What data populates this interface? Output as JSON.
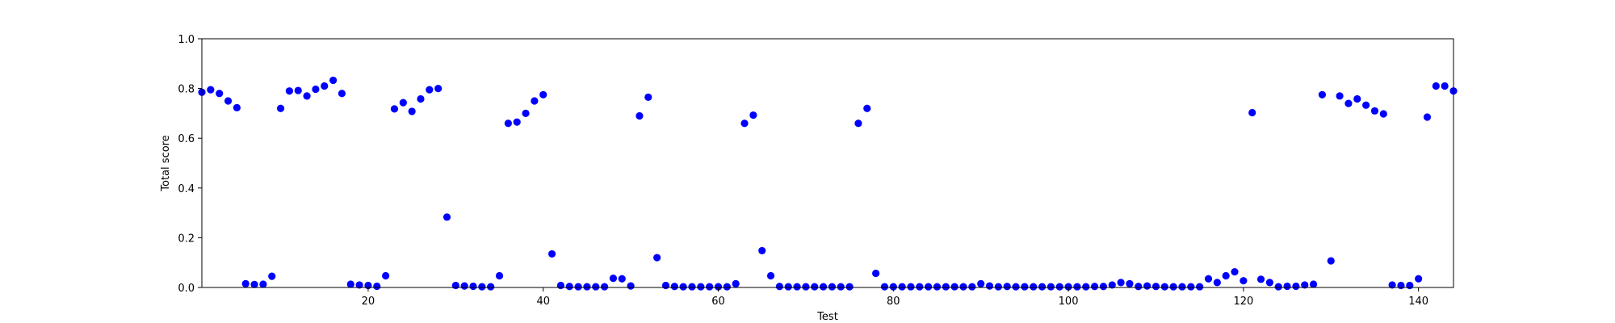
{
  "chart_data": {
    "type": "scatter",
    "title": "",
    "xlabel": "Test",
    "ylabel": "Total score",
    "xlim": [
      1,
      144
    ],
    "ylim": [
      0,
      1.0
    ],
    "xticks": [
      20,
      40,
      60,
      80,
      100,
      120,
      140
    ],
    "yticks": [
      0.0,
      0.2,
      0.4,
      0.6,
      0.8,
      1.0
    ],
    "ytick_labels": [
      "0.0",
      "0.2",
      "0.4",
      "0.6",
      "0.8",
      "1.0"
    ],
    "grid": false,
    "marker_color": "#0000ff",
    "points": [
      [
        1,
        0.785
      ],
      [
        2,
        0.795
      ],
      [
        3,
        0.78
      ],
      [
        4,
        0.75
      ],
      [
        5,
        0.723
      ],
      [
        6,
        0.015
      ],
      [
        7,
        0.012
      ],
      [
        8,
        0.013
      ],
      [
        9,
        0.045
      ],
      [
        10,
        0.72
      ],
      [
        11,
        0.79
      ],
      [
        12,
        0.792
      ],
      [
        13,
        0.77
      ],
      [
        14,
        0.797
      ],
      [
        15,
        0.81
      ],
      [
        16,
        0.833
      ],
      [
        17,
        0.78
      ],
      [
        18,
        0.013
      ],
      [
        19,
        0.01
      ],
      [
        20,
        0.008
      ],
      [
        21,
        0.005
      ],
      [
        22,
        0.047
      ],
      [
        23,
        0.718
      ],
      [
        24,
        0.743
      ],
      [
        25,
        0.708
      ],
      [
        26,
        0.758
      ],
      [
        27,
        0.795
      ],
      [
        28,
        0.8
      ],
      [
        29,
        0.283
      ],
      [
        30,
        0.008
      ],
      [
        31,
        0.006
      ],
      [
        32,
        0.005
      ],
      [
        33,
        0.003
      ],
      [
        34,
        0.003
      ],
      [
        35,
        0.047
      ],
      [
        36,
        0.66
      ],
      [
        37,
        0.665
      ],
      [
        38,
        0.7
      ],
      [
        39,
        0.75
      ],
      [
        40,
        0.775
      ],
      [
        41,
        0.135
      ],
      [
        42,
        0.008
      ],
      [
        43,
        0.004
      ],
      [
        44,
        0.003
      ],
      [
        45,
        0.003
      ],
      [
        46,
        0.003
      ],
      [
        47,
        0.003
      ],
      [
        48,
        0.037
      ],
      [
        49,
        0.035
      ],
      [
        50,
        0.006
      ],
      [
        51,
        0.69
      ],
      [
        52,
        0.765
      ],
      [
        53,
        0.12
      ],
      [
        54,
        0.008
      ],
      [
        55,
        0.004
      ],
      [
        56,
        0.003
      ],
      [
        57,
        0.003
      ],
      [
        58,
        0.003
      ],
      [
        59,
        0.003
      ],
      [
        60,
        0.003
      ],
      [
        61,
        0.003
      ],
      [
        62,
        0.015
      ],
      [
        63,
        0.66
      ],
      [
        64,
        0.693
      ],
      [
        65,
        0.148
      ],
      [
        66,
        0.047
      ],
      [
        67,
        0.004
      ],
      [
        68,
        0.003
      ],
      [
        69,
        0.003
      ],
      [
        70,
        0.003
      ],
      [
        71,
        0.003
      ],
      [
        72,
        0.003
      ],
      [
        73,
        0.003
      ],
      [
        74,
        0.003
      ],
      [
        75,
        0.003
      ],
      [
        76,
        0.66
      ],
      [
        77,
        0.72
      ],
      [
        78,
        0.057
      ],
      [
        79,
        0.003
      ],
      [
        80,
        0.003
      ],
      [
        81,
        0.003
      ],
      [
        82,
        0.003
      ],
      [
        83,
        0.003
      ],
      [
        84,
        0.003
      ],
      [
        85,
        0.003
      ],
      [
        86,
        0.003
      ],
      [
        87,
        0.003
      ],
      [
        88,
        0.003
      ],
      [
        89,
        0.003
      ],
      [
        90,
        0.015
      ],
      [
        91,
        0.006
      ],
      [
        92,
        0.003
      ],
      [
        93,
        0.004
      ],
      [
        94,
        0.003
      ],
      [
        95,
        0.003
      ],
      [
        96,
        0.003
      ],
      [
        97,
        0.003
      ],
      [
        98,
        0.003
      ],
      [
        99,
        0.003
      ],
      [
        100,
        0.003
      ],
      [
        101,
        0.003
      ],
      [
        102,
        0.003
      ],
      [
        103,
        0.004
      ],
      [
        104,
        0.004
      ],
      [
        105,
        0.01
      ],
      [
        106,
        0.02
      ],
      [
        107,
        0.015
      ],
      [
        108,
        0.004
      ],
      [
        109,
        0.006
      ],
      [
        110,
        0.004
      ],
      [
        111,
        0.003
      ],
      [
        112,
        0.003
      ],
      [
        113,
        0.003
      ],
      [
        114,
        0.003
      ],
      [
        115,
        0.003
      ],
      [
        116,
        0.035
      ],
      [
        117,
        0.02
      ],
      [
        118,
        0.047
      ],
      [
        119,
        0.063
      ],
      [
        120,
        0.027
      ],
      [
        121,
        0.703
      ],
      [
        122,
        0.033
      ],
      [
        123,
        0.02
      ],
      [
        124,
        0.003
      ],
      [
        125,
        0.005
      ],
      [
        126,
        0.005
      ],
      [
        127,
        0.01
      ],
      [
        128,
        0.013
      ],
      [
        129,
        0.775
      ],
      [
        130,
        0.107
      ],
      [
        131,
        0.77
      ],
      [
        132,
        0.74
      ],
      [
        133,
        0.758
      ],
      [
        134,
        0.733
      ],
      [
        135,
        0.71
      ],
      [
        136,
        0.698
      ],
      [
        137,
        0.01
      ],
      [
        138,
        0.008
      ],
      [
        139,
        0.008
      ],
      [
        140,
        0.035
      ],
      [
        141,
        0.685
      ],
      [
        142,
        0.81
      ],
      [
        143,
        0.81
      ],
      [
        144,
        0.79
      ]
    ]
  }
}
